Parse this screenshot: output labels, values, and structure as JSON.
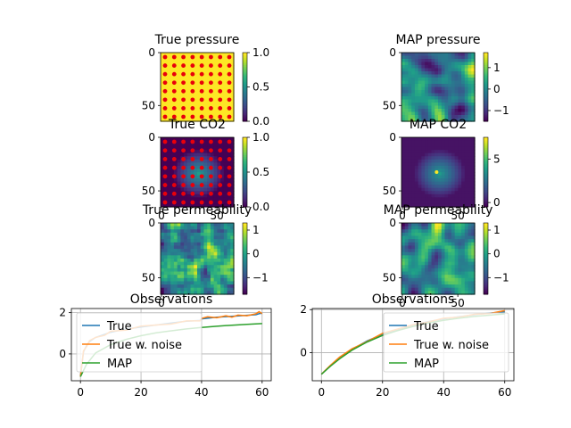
{
  "chart_data": [
    {
      "type": "heatmap",
      "title": "True pressure",
      "yticks": [
        "0",
        "50"
      ],
      "xticks": [],
      "colorbar": {
        "min": 0.0,
        "max": 1.0,
        "ticks": [
          "0.0",
          "0.5",
          "1.0"
        ]
      },
      "field": "uniform",
      "overlay_points": "8x8 grid of red observation wells"
    },
    {
      "type": "heatmap",
      "title": "MAP pressure",
      "yticks": [
        "0",
        "50"
      ],
      "xticks": [],
      "colorbar": {
        "min": -1.5,
        "max": 1.7,
        "ticks": [
          "1",
          "0",
          "−1"
        ]
      },
      "field": "smooth-random"
    },
    {
      "type": "heatmap",
      "title": "True CO2",
      "yticks": [
        "0",
        "50"
      ],
      "xticks": [
        "0",
        "50"
      ],
      "colorbar": {
        "min": 0.0,
        "max": 1.0,
        "ticks": [
          "0.0",
          "0.5",
          "1.0"
        ]
      },
      "field": "central-plume",
      "overlay_points": "8x8 grid of red observation wells"
    },
    {
      "type": "heatmap",
      "title": "MAP CO2",
      "yticks": [
        "0",
        "50"
      ],
      "xticks": [
        "0",
        "50"
      ],
      "colorbar": {
        "min": -0.5,
        "max": 7.5,
        "ticks": [
          "5",
          "0"
        ]
      },
      "field": "central-plume"
    },
    {
      "type": "heatmap",
      "title": "True permeability",
      "yticks": [
        "0",
        "50"
      ],
      "xticks": [
        "0"
      ],
      "colorbar": {
        "min": -1.7,
        "max": 1.3,
        "ticks": [
          "1",
          "0",
          "−1"
        ]
      },
      "field": "rough-random"
    },
    {
      "type": "heatmap",
      "title": "MAP permeability",
      "yticks": [
        "0",
        "50"
      ],
      "xticks": [
        "0",
        "50"
      ],
      "colorbar": {
        "min": -1.7,
        "max": 1.3,
        "ticks": [
          "1",
          "0",
          "−1"
        ]
      },
      "field": "smooth-random"
    },
    {
      "type": "line",
      "title": "Observations",
      "xlim": [
        -3,
        63
      ],
      "ylim": [
        -1.3,
        2.2
      ],
      "xticks": [
        "0",
        "20",
        "40",
        "60"
      ],
      "yticks": [
        "2",
        "0"
      ],
      "grid": true,
      "legend": "top-center",
      "series": [
        {
          "name": "True",
          "color": "#1f77b4",
          "x": [
            0,
            1,
            2,
            3,
            5,
            8,
            10,
            15,
            20,
            25,
            30,
            35,
            39.5,
            40,
            45,
            50,
            55,
            58,
            59,
            60
          ],
          "y": [
            -1.1,
            0.1,
            0.4,
            0.6,
            0.8,
            0.95,
            1.05,
            1.2,
            1.3,
            1.4,
            1.5,
            1.58,
            1.62,
            1.7,
            1.78,
            1.82,
            1.87,
            1.9,
            1.95,
            1.97
          ]
        },
        {
          "name": "True w. noise",
          "color": "#ff7f0e",
          "x": [
            0,
            1,
            2,
            3,
            5,
            8,
            10,
            15,
            20,
            25,
            30,
            35,
            39.5,
            40,
            42,
            45,
            48,
            50,
            52,
            55,
            58,
            59,
            60
          ],
          "y": [
            -1.1,
            0.15,
            0.35,
            0.65,
            0.8,
            0.9,
            1.1,
            1.15,
            1.35,
            1.4,
            1.45,
            1.6,
            1.6,
            1.72,
            1.8,
            1.75,
            1.85,
            1.78,
            1.88,
            1.85,
            1.95,
            2.05,
            1.95
          ]
        },
        {
          "name": "MAP",
          "color": "#2ca02c",
          "x": [
            0,
            2,
            5,
            10,
            15,
            20,
            25,
            30,
            35,
            40,
            45,
            50,
            55,
            60
          ],
          "y": [
            -1.1,
            -0.5,
            0.05,
            0.45,
            0.7,
            0.88,
            1.02,
            1.12,
            1.21,
            1.28,
            1.34,
            1.39,
            1.43,
            1.47
          ]
        }
      ]
    },
    {
      "type": "line",
      "title": "Observations",
      "xlim": [
        -3,
        63
      ],
      "ylim": [
        -1.3,
        2.05
      ],
      "xticks": [
        "0",
        "20",
        "40",
        "60"
      ],
      "yticks": [
        "2",
        "0"
      ],
      "grid": true,
      "legend": "top-right",
      "series": [
        {
          "name": "True",
          "color": "#1f77b4",
          "x": [
            0,
            3,
            6,
            10,
            15,
            20,
            25,
            30,
            35,
            40,
            45,
            50,
            55,
            60
          ],
          "y": [
            -1.0,
            -0.6,
            -0.25,
            0.15,
            0.55,
            0.85,
            1.08,
            1.28,
            1.44,
            1.57,
            1.67,
            1.76,
            1.83,
            1.9
          ]
        },
        {
          "name": "True w. noise",
          "color": "#ff7f0e",
          "x": [
            0,
            3,
            6,
            10,
            15,
            20,
            25,
            30,
            35,
            40,
            45,
            50,
            55,
            60
          ],
          "y": [
            -1.0,
            -0.58,
            -0.2,
            0.18,
            0.52,
            0.9,
            1.1,
            1.3,
            1.42,
            1.6,
            1.65,
            1.78,
            1.82,
            1.95
          ]
        },
        {
          "name": "MAP",
          "color": "#2ca02c",
          "x": [
            0,
            3,
            6,
            10,
            15,
            20,
            25,
            30,
            35,
            40,
            45,
            50,
            55,
            60
          ],
          "y": [
            -1.0,
            -0.62,
            -0.28,
            0.12,
            0.5,
            0.8,
            1.03,
            1.22,
            1.38,
            1.5,
            1.6,
            1.68,
            1.74,
            1.8
          ]
        }
      ]
    }
  ]
}
